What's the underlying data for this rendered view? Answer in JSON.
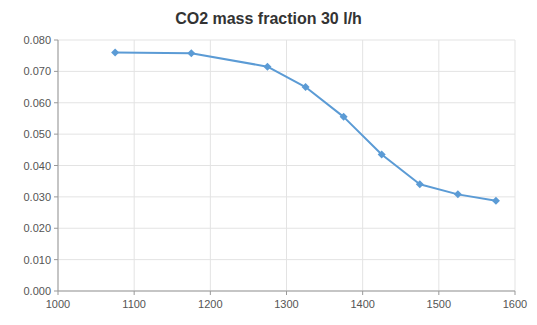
{
  "chart_data": {
    "type": "line",
    "title": "CO2 mass fraction 30 l/h",
    "x": [
      1075,
      1175,
      1275,
      1325,
      1375,
      1425,
      1475,
      1525,
      1575
    ],
    "values": [
      0.076,
      0.0758,
      0.0715,
      0.065,
      0.0555,
      0.0435,
      0.034,
      0.0308,
      0.0288
    ],
    "color": "#5b9bd5",
    "marker": "diamond",
    "xlim": [
      1000,
      1600
    ],
    "ylim": [
      0,
      0.08
    ],
    "xticks": [
      1000,
      1100,
      1200,
      1300,
      1400,
      1500,
      1600
    ],
    "yticks": [
      {
        "value": 0,
        "label": "0.000"
      },
      {
        "value": 0.01,
        "label": "0.010"
      },
      {
        "value": 0.02,
        "label": "0.020"
      },
      {
        "value": 0.03,
        "label": "0.030"
      },
      {
        "value": 0.04,
        "label": "0.040"
      },
      {
        "value": 0.05,
        "label": "0.050"
      },
      {
        "value": 0.06,
        "label": "0.060"
      },
      {
        "value": 0.07,
        "label": "0.070"
      },
      {
        "value": 0.08,
        "label": "0.080"
      }
    ],
    "grid": true
  }
}
